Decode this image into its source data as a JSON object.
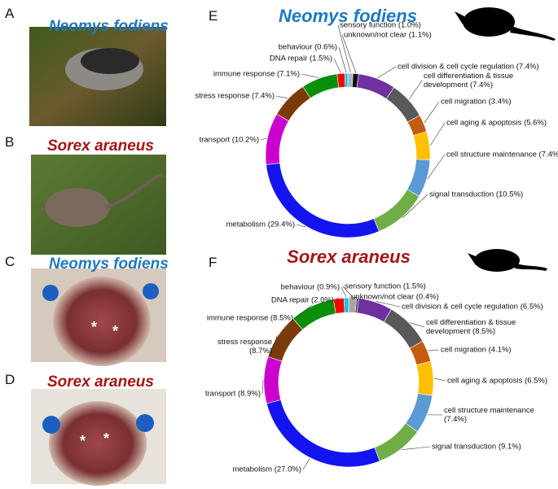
{
  "panels": [
    {
      "letter": "A",
      "title": "Neomys fodiens",
      "color": "#1f78c1"
    },
    {
      "letter": "B",
      "title": "Sorex araneus",
      "color": "#a31515"
    },
    {
      "letter": "C",
      "title": "Neomys fodiens",
      "color": "#1f78c1",
      "marks": [
        "*",
        "*"
      ]
    },
    {
      "letter": "D",
      "title": "Sorex araneus",
      "color": "#a31515",
      "marks": [
        "*",
        "*"
      ]
    }
  ],
  "chart_data": [
    {
      "type": "donut",
      "label": "E",
      "title": "Neomys fodiens",
      "title_color": "#1f78c1",
      "categories": [
        "sensory function",
        "unknown/not clear",
        "cell division & cell cycle regulation",
        "cell differentiation & tissue development",
        "cell migration",
        "cell aging & apoptosis",
        "cell structure maintenance",
        "signal transduction",
        "metabolism",
        "transport",
        "stress response",
        "immune response",
        "DNA repair",
        "behaviour"
      ],
      "values": [
        1.0,
        1.1,
        7.4,
        7.4,
        3.4,
        5.6,
        7.4,
        10.5,
        29.4,
        10.2,
        7.4,
        7.1,
        1.5,
        0.6
      ],
      "value_labels": [
        "(1.0%)",
        "(1.1%)",
        "(7.4%)",
        "(7.4%)",
        "(3.4%)",
        "(5.6%)",
        "(7.4%)",
        "(10.5%)",
        "(29.4%)",
        "(10.2%)",
        "(7.4%)",
        "(7.1%)",
        "(1.5%)",
        "(0.6%)"
      ],
      "colors": [
        "#9fb6cc",
        "#111111",
        "#7030a0",
        "#595959",
        "#c55a11",
        "#ffc000",
        "#5b9bd5",
        "#70ad47",
        "#1414f0",
        "#cc00cc",
        "#7a3b0a",
        "#0a8f0a",
        "#ff0000",
        "#19c2e0"
      ]
    },
    {
      "type": "donut",
      "label": "F",
      "title": "Sorex araneus",
      "title_color": "#a31515",
      "categories": [
        "sensory function",
        "unknown/not clear",
        "cell division & cell cycle regulation",
        "cell differentiation & tissue development",
        "cell migration",
        "cell aging & apoptosis",
        "cell structure maintenance",
        "signal transduction",
        "metabolism",
        "transport",
        "stress response",
        "immune response",
        "DNA repair",
        "behaviour"
      ],
      "values": [
        1.5,
        0.4,
        6.5,
        8.5,
        4.1,
        6.5,
        7.4,
        9.1,
        27.0,
        8.9,
        8.7,
        8.5,
        2.0,
        0.9
      ],
      "value_labels": [
        "(1.5%)",
        "(0.4%)",
        "(6.5%)",
        "(8.5%)",
        "(4.1%)",
        "(6.5%)",
        "(7.4%)",
        "(9.1%)",
        "(27.0%)",
        "(8.9%)",
        "(8.7%)",
        "(8.5%)",
        "(2.0%)",
        "(0.9%)"
      ],
      "colors": [
        "#a6a6a6",
        "#444444",
        "#7030a0",
        "#595959",
        "#c55a11",
        "#ffc000",
        "#5b9bd5",
        "#70ad47",
        "#1414f0",
        "#cc00cc",
        "#7a3b0a",
        "#0a8f0a",
        "#ff0000",
        "#19c2e0"
      ]
    }
  ]
}
